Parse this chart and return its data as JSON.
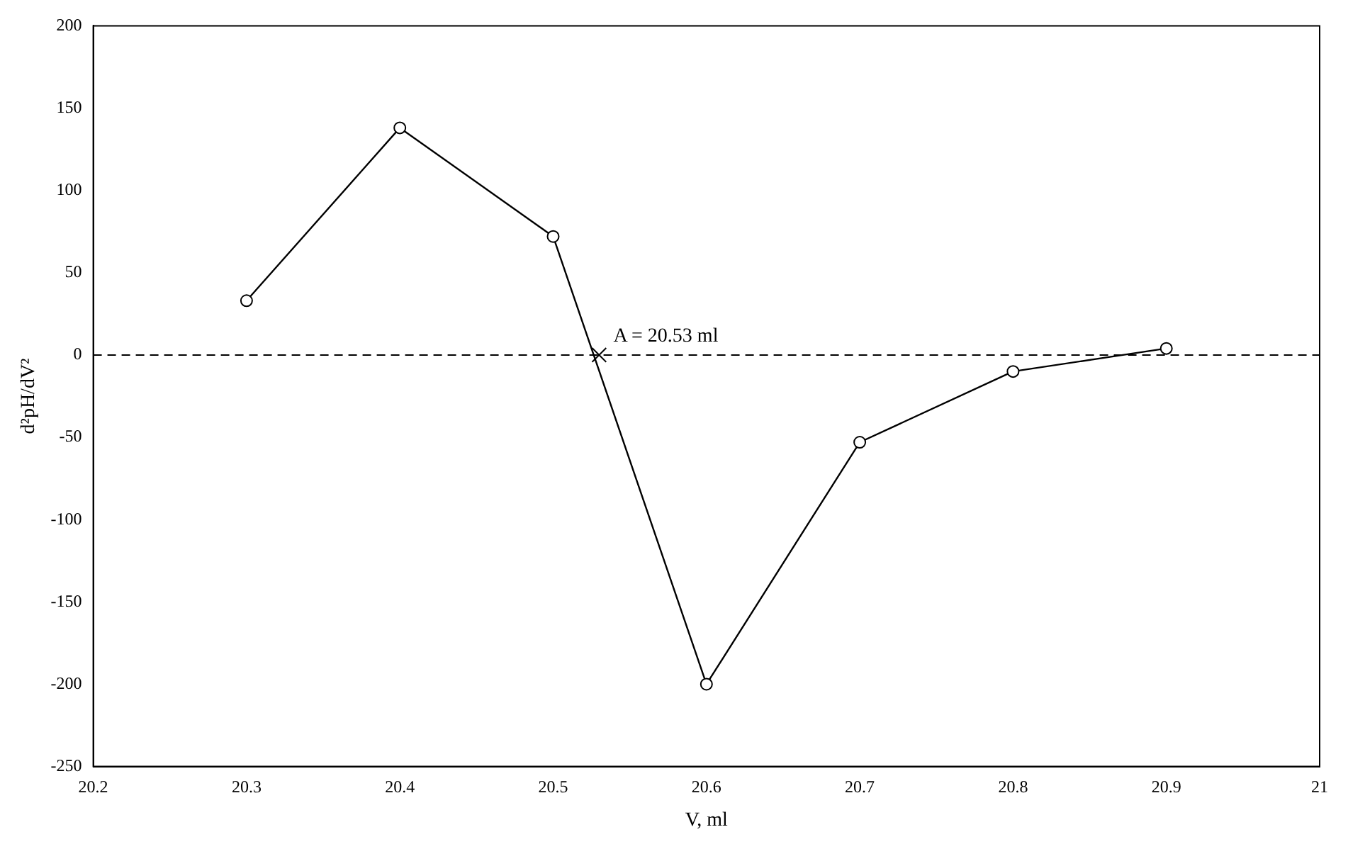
{
  "chart_data": {
    "type": "line",
    "xlabel": "V, ml",
    "ylabel": "d²pH/dV²",
    "x": [
      20.3,
      20.4,
      20.5,
      20.6,
      20.7,
      20.8,
      20.9
    ],
    "series": [
      {
        "color": "#000000",
        "values": [
          33,
          138,
          72,
          -200,
          -53,
          -10,
          4
        ],
        "marker": "circle"
      },
      {
        "type": "scatter",
        "color": "#000000",
        "x": [
          20.53
        ],
        "values": [
          0
        ],
        "marker": "cross"
      }
    ],
    "xlim": [
      20.2,
      21
    ],
    "xticks": [
      20.2,
      20.3,
      20.4,
      20.5,
      20.6,
      20.7,
      20.8,
      20.9,
      21
    ],
    "ylim": [
      -250,
      200
    ],
    "yticks": [
      -250,
      -200,
      -150,
      -100,
      -50,
      0,
      50,
      100,
      150,
      200
    ],
    "ref_lines": [
      {
        "axis": "y",
        "value": 0,
        "color": "#000000",
        "line_style": "dashed"
      }
    ],
    "annotations": [
      {
        "text": "A = 20.53 ml",
        "x": 20.53,
        "y": 0
      }
    ],
    "grid": false,
    "legend": false,
    "line_style": "solid"
  }
}
